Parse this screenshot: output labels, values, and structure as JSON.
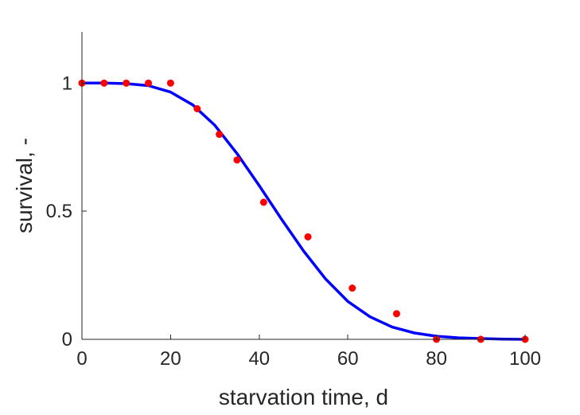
{
  "chart_data": {
    "type": "scatter",
    "title": "",
    "xlabel": "starvation time, d",
    "ylabel": "survival, -",
    "xlim": [
      0,
      100
    ],
    "ylim": [
      0,
      1.2
    ],
    "xticks": [
      0,
      20,
      40,
      60,
      80,
      100
    ],
    "xtick_labels": [
      "0",
      "20",
      "40",
      "60",
      "80",
      "100"
    ],
    "yticks": [
      0,
      0.5,
      1
    ],
    "ytick_labels": [
      "0",
      "0.5",
      "1"
    ],
    "grid": false,
    "legend": "none",
    "series": [
      {
        "kind": "markers",
        "color": "#ff0000",
        "x": [
          0,
          5,
          10,
          15,
          20,
          26,
          31,
          35,
          41,
          51,
          61,
          71,
          80,
          90,
          100
        ],
        "y": [
          1,
          1,
          1,
          1,
          1,
          0.9,
          0.8,
          0.7,
          0.535,
          0.4,
          0.2,
          0.1,
          0,
          0,
          0
        ]
      },
      {
        "kind": "line",
        "color": "#0000ff",
        "x": [
          0,
          5,
          10,
          15,
          20,
          25,
          30,
          35,
          40,
          45,
          50,
          55,
          60,
          65,
          70,
          75,
          80,
          85,
          90,
          95,
          100
        ],
        "y": [
          1.0,
          1.0,
          0.998,
          0.99,
          0.965,
          0.915,
          0.835,
          0.725,
          0.6,
          0.47,
          0.345,
          0.235,
          0.148,
          0.088,
          0.048,
          0.025,
          0.012,
          0.006,
          0.003,
          0.001,
          0.0
        ]
      }
    ]
  }
}
